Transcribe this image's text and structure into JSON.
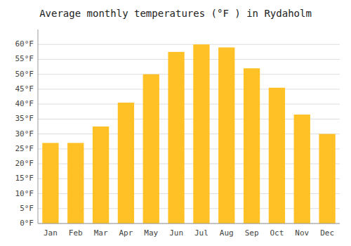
{
  "chart_data": {
    "type": "bar",
    "title": "Average monthly temperatures (°F ) in Rydaholm",
    "categories": [
      "Jan",
      "Feb",
      "Mar",
      "Apr",
      "May",
      "Jun",
      "Jul",
      "Aug",
      "Sep",
      "Oct",
      "Nov",
      "Dec"
    ],
    "values": [
      27,
      27,
      32.5,
      40.5,
      50,
      57.5,
      60,
      59,
      52,
      45.5,
      36.5,
      30
    ],
    "color": "#FFC125",
    "ylim": [
      0,
      65
    ],
    "yticks": [
      {
        "value": 0,
        "label": "0°F"
      },
      {
        "value": 5,
        "label": "5°F"
      },
      {
        "value": 10,
        "label": "10°F"
      },
      {
        "value": 15,
        "label": "15°F"
      },
      {
        "value": 20,
        "label": "20°F"
      },
      {
        "value": 25,
        "label": "25°F"
      },
      {
        "value": 30,
        "label": "30°F"
      },
      {
        "value": 35,
        "label": "35°F"
      },
      {
        "value": 40,
        "label": "40°F"
      },
      {
        "value": 45,
        "label": "45°F"
      },
      {
        "value": 50,
        "label": "50°F"
      },
      {
        "value": 55,
        "label": "55°F"
      },
      {
        "value": 60,
        "label": "60°F"
      }
    ],
    "grid": true
  }
}
